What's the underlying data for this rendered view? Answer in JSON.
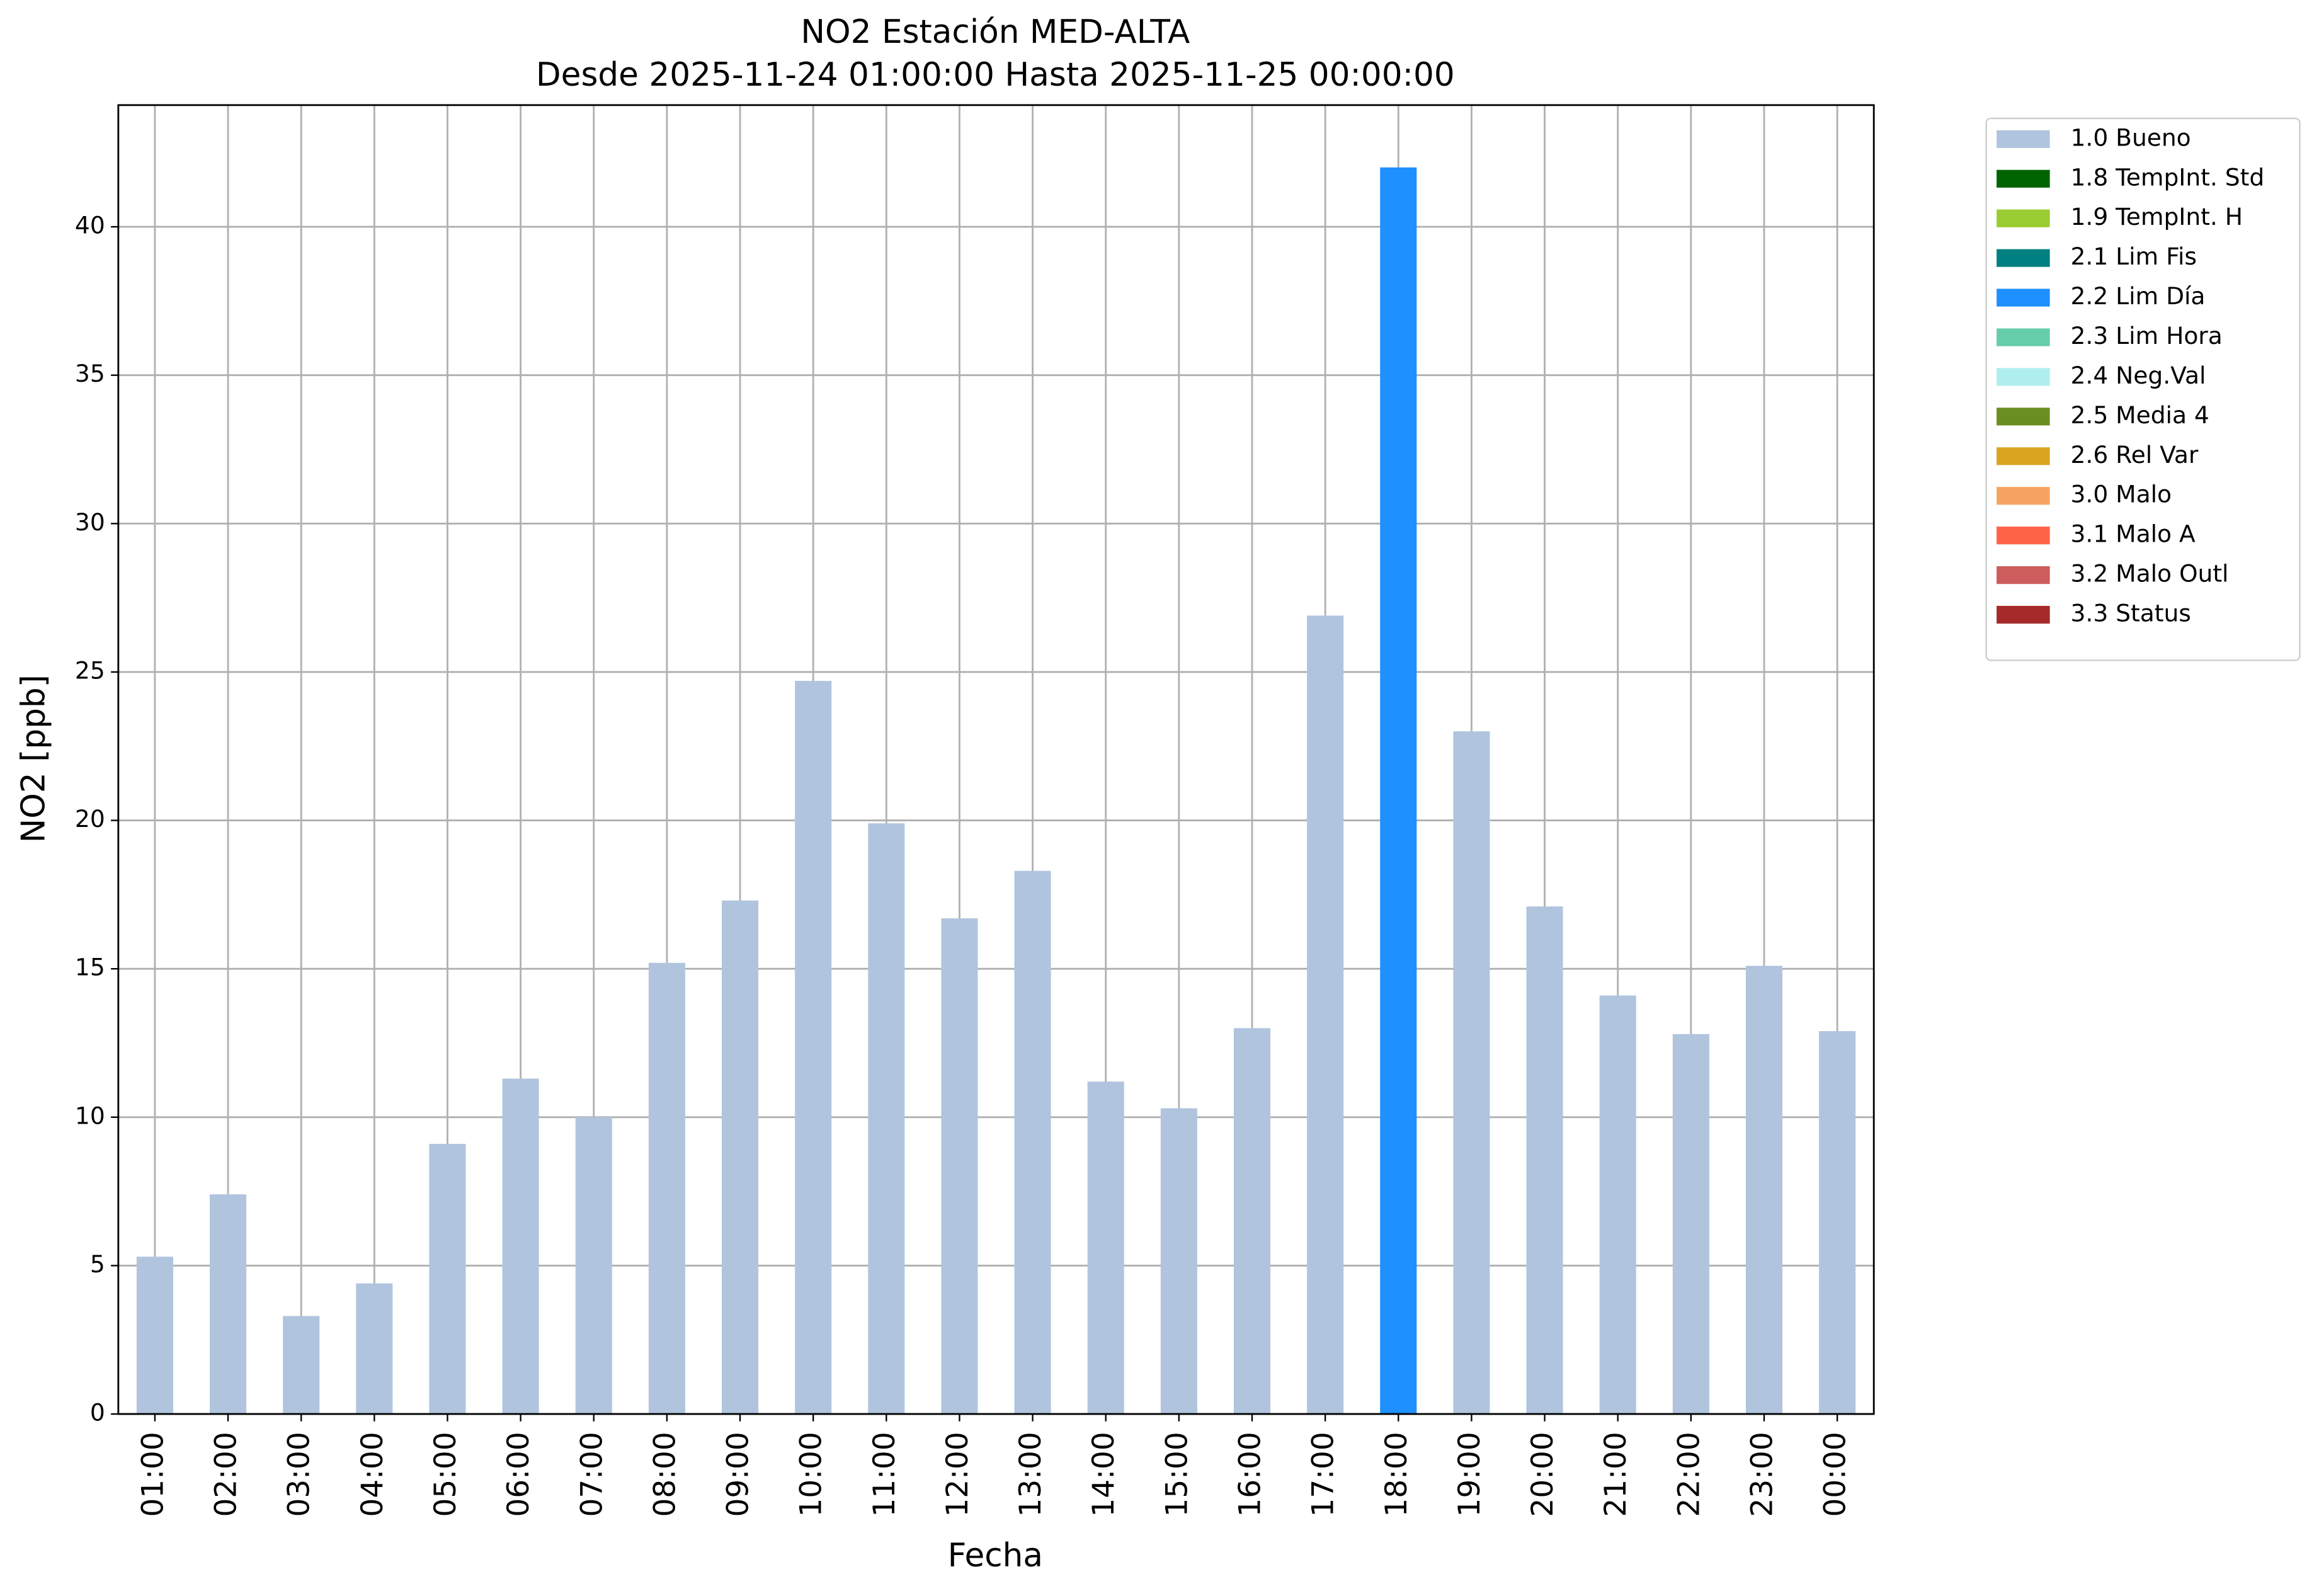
{
  "chart_data": {
    "type": "stacked_bar",
    "title": "NO2 Estación MED-ALTA",
    "subtitle": "Desde 2025-11-24 01:00:00 Hasta 2025-11-25 00:00:00",
    "xlabel": "Fecha",
    "ylabel": "NO2 [ppb]",
    "categories": [
      "01:00",
      "02:00",
      "03:00",
      "04:00",
      "05:00",
      "06:00",
      "07:00",
      "08:00",
      "09:00",
      "10:00",
      "11:00",
      "12:00",
      "13:00",
      "14:00",
      "15:00",
      "16:00",
      "17:00",
      "18:00",
      "19:00",
      "20:00",
      "21:00",
      "22:00",
      "23:00",
      "00:00"
    ],
    "series": [
      {
        "name": "1.0 Bueno",
        "color": "#b0c4de",
        "values": [
          5.3,
          7.4,
          3.3,
          4.4,
          9.1,
          11.3,
          10.0,
          15.2,
          17.3,
          24.7,
          19.9,
          16.7,
          18.3,
          11.2,
          10.3,
          13.0,
          26.9,
          null,
          23.0,
          17.1,
          14.1,
          12.8,
          15.1,
          12.9
        ]
      },
      {
        "name": "1.8 TempInt. Std",
        "color": "#006400",
        "values": [
          null,
          null,
          null,
          null,
          null,
          null,
          null,
          null,
          null,
          null,
          null,
          null,
          null,
          null,
          null,
          null,
          null,
          null,
          null,
          null,
          null,
          null,
          null,
          null
        ]
      },
      {
        "name": "1.9 TempInt. H",
        "color": "#9acd32",
        "values": [
          null,
          null,
          null,
          null,
          null,
          null,
          null,
          null,
          null,
          null,
          null,
          null,
          null,
          null,
          null,
          null,
          null,
          null,
          null,
          null,
          null,
          null,
          null,
          null
        ]
      },
      {
        "name": "2.1 Lim Fis",
        "color": "#008080",
        "values": [
          null,
          null,
          null,
          null,
          null,
          null,
          null,
          null,
          null,
          null,
          null,
          null,
          null,
          null,
          null,
          null,
          null,
          null,
          null,
          null,
          null,
          null,
          null,
          null
        ]
      },
      {
        "name": "2.2 Lim Día",
        "color": "#1e90ff",
        "values": [
          null,
          null,
          null,
          null,
          null,
          null,
          null,
          null,
          null,
          null,
          null,
          null,
          null,
          null,
          null,
          null,
          null,
          42.0,
          null,
          null,
          null,
          null,
          null,
          null
        ]
      },
      {
        "name": "2.3 Lim Hora",
        "color": "#66cdaa",
        "values": [
          null,
          null,
          null,
          null,
          null,
          null,
          null,
          null,
          null,
          null,
          null,
          null,
          null,
          null,
          null,
          null,
          null,
          null,
          null,
          null,
          null,
          null,
          null,
          null
        ]
      },
      {
        "name": "2.4 Neg.Val",
        "color": "#afeeee",
        "values": [
          null,
          null,
          null,
          null,
          null,
          null,
          null,
          null,
          null,
          null,
          null,
          null,
          null,
          null,
          null,
          null,
          null,
          null,
          null,
          null,
          null,
          null,
          null,
          null
        ]
      },
      {
        "name": "2.5 Media 4",
        "color": "#6b8e23",
        "values": [
          null,
          null,
          null,
          null,
          null,
          null,
          null,
          null,
          null,
          null,
          null,
          null,
          null,
          null,
          null,
          null,
          null,
          null,
          null,
          null,
          null,
          null,
          null,
          null
        ]
      },
      {
        "name": "2.6 Rel Var",
        "color": "#daa520",
        "values": [
          null,
          null,
          null,
          null,
          null,
          null,
          null,
          null,
          null,
          null,
          null,
          null,
          null,
          null,
          null,
          null,
          null,
          null,
          null,
          null,
          null,
          null,
          null,
          null
        ]
      },
      {
        "name": "3.0 Malo",
        "color": "#f4a460",
        "values": [
          null,
          null,
          null,
          null,
          null,
          null,
          null,
          null,
          null,
          null,
          null,
          null,
          null,
          null,
          null,
          null,
          null,
          null,
          null,
          null,
          null,
          null,
          null,
          null
        ]
      },
      {
        "name": "3.1 Malo A",
        "color": "#ff6347",
        "values": [
          null,
          null,
          null,
          null,
          null,
          null,
          null,
          null,
          null,
          null,
          null,
          null,
          null,
          null,
          null,
          null,
          null,
          null,
          null,
          null,
          null,
          null,
          null,
          null
        ]
      },
      {
        "name": "3.2 Malo Outl",
        "color": "#cd5c5c",
        "values": [
          null,
          null,
          null,
          null,
          null,
          null,
          null,
          null,
          null,
          null,
          null,
          null,
          null,
          null,
          null,
          null,
          null,
          null,
          null,
          null,
          null,
          null,
          null,
          null
        ]
      },
      {
        "name": "3.3 Status",
        "color": "#a52a2a",
        "values": [
          null,
          null,
          null,
          null,
          null,
          null,
          null,
          null,
          null,
          null,
          null,
          null,
          null,
          null,
          null,
          null,
          null,
          null,
          null,
          null,
          null,
          null,
          null,
          null
        ]
      }
    ],
    "ylim": [
      0,
      44.1
    ],
    "yticks": [
      0,
      5,
      10,
      15,
      20,
      25,
      30,
      35,
      40
    ],
    "grid": true,
    "legend": "outside-upper-right"
  }
}
